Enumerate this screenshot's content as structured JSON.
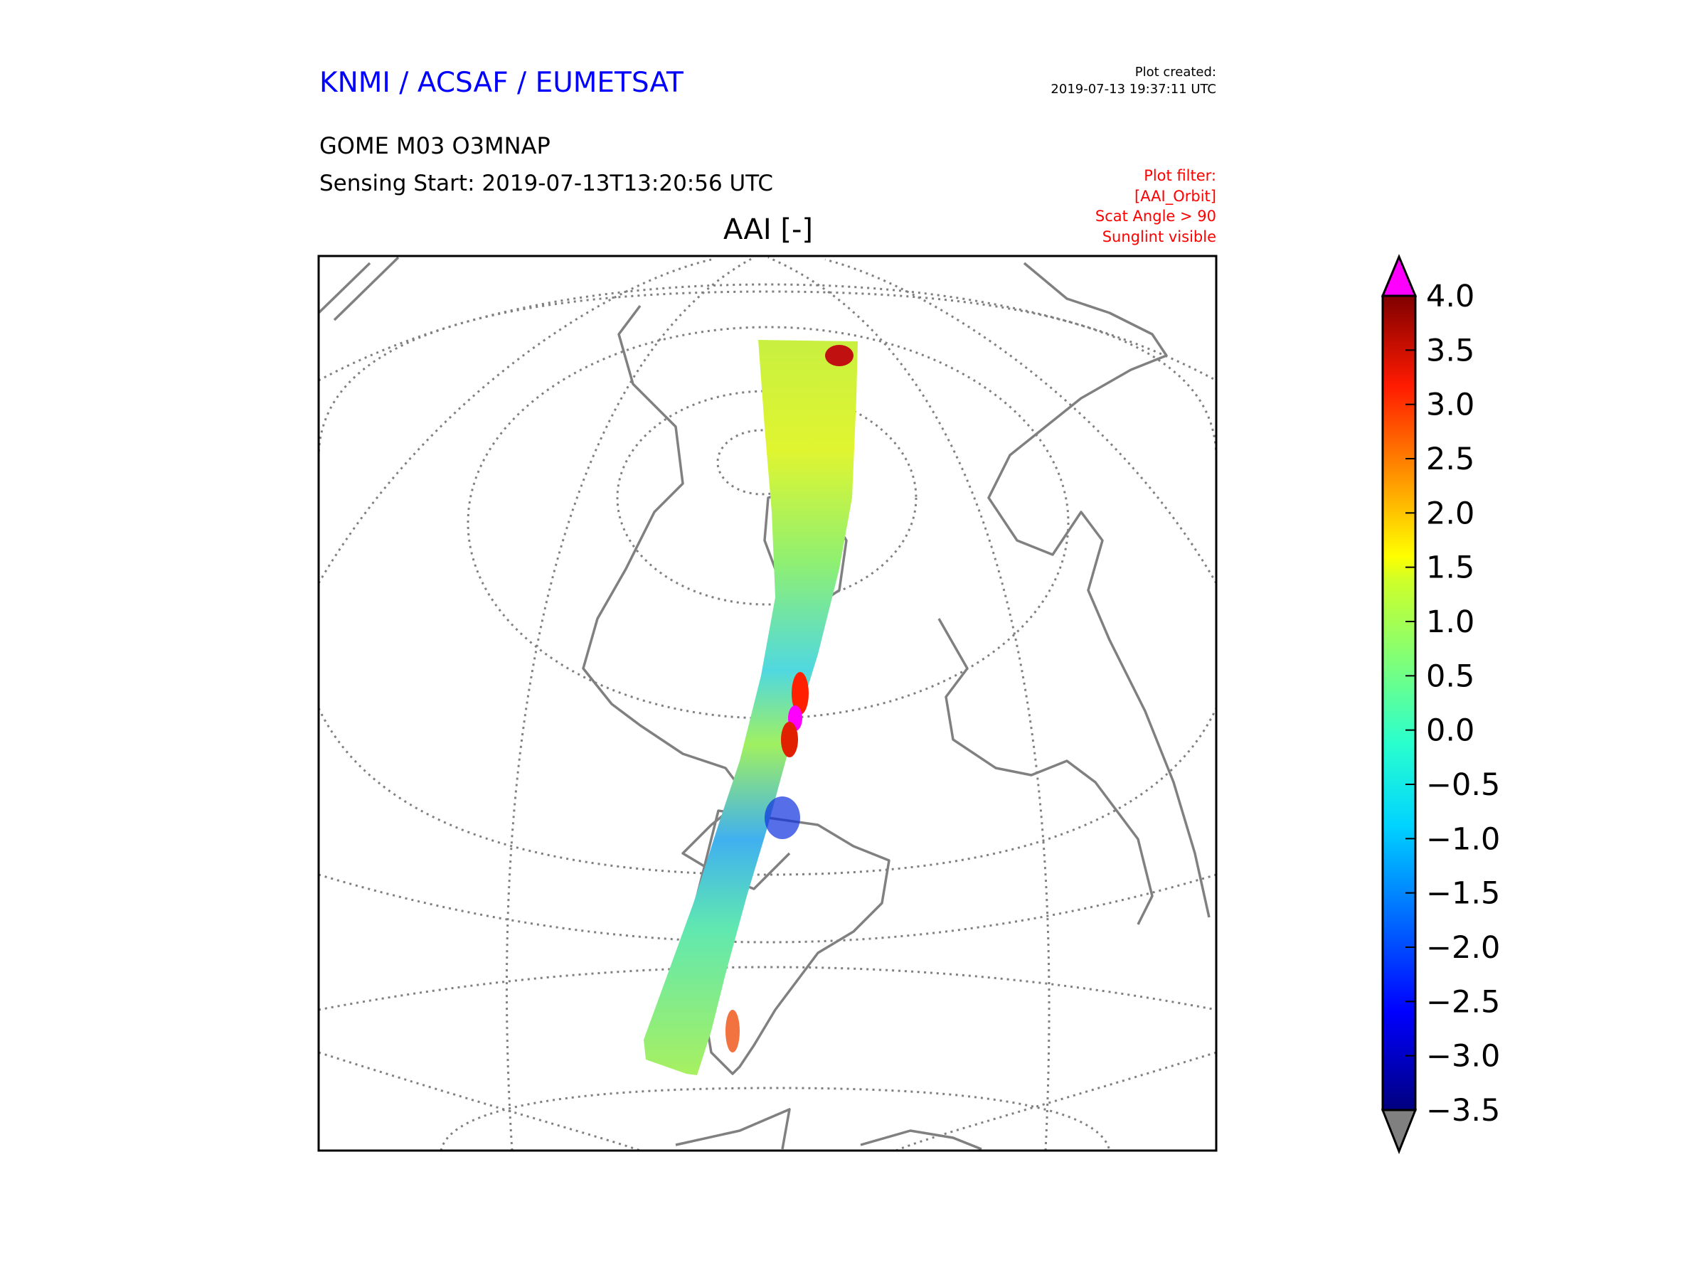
{
  "header": {
    "organisation": "KNMI / ACSAF / EUMETSAT",
    "plot_created_label": "Plot created:",
    "plot_created_value": "2019-07-13 19:37:11 UTC",
    "product": "GOME M03 O3MNAP",
    "sensing_start": "Sensing Start: 2019-07-13T13:20:56 UTC",
    "filter_lines": [
      "Plot filter:",
      "[AAI_Orbit]",
      "Scat Angle > 90",
      "Sunglint visible"
    ]
  },
  "chart_data": {
    "type": "heatmap",
    "title": "AAI [-]",
    "description_kind": "satellite swath on polar stereographic map",
    "colorbar": {
      "vmin": -3.5,
      "vmax": 4.0,
      "ticks": [
        4.0,
        3.5,
        3.0,
        2.5,
        2.0,
        1.5,
        1.0,
        0.5,
        0.0,
        -0.5,
        -1.0,
        -1.5,
        -2.0,
        -2.5,
        -3.0,
        -3.5
      ],
      "tick_labels": [
        "4.0",
        "3.5",
        "3.0",
        "2.5",
        "2.0",
        "1.5",
        "1.0",
        "0.5",
        "0.0",
        "−0.5",
        "−1.0",
        "−1.5",
        "−2.0",
        "−2.5",
        "−3.0",
        "−3.5"
      ],
      "colormap": "jet",
      "extend_over_color": "#ff00ff",
      "extend_under_color": "#808080"
    },
    "colors": {
      "coastline": "#808080",
      "graticule": "#808080"
    }
  }
}
